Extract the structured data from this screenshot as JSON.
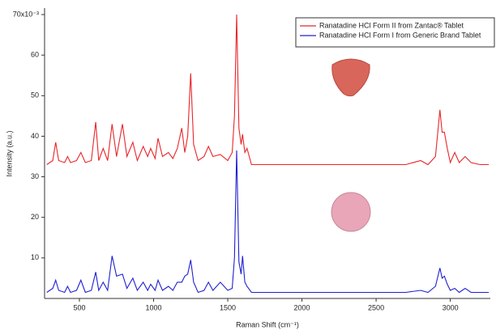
{
  "chart_data": {
    "type": "line",
    "xlabel": "Raman Shift (cm⁻¹)",
    "ylabel": "Intensity (a.u.)",
    "x": [
      280,
      320,
      340,
      360,
      400,
      420,
      440,
      480,
      510,
      540,
      580,
      610,
      630,
      660,
      690,
      720,
      750,
      790,
      820,
      860,
      890,
      930,
      960,
      980,
      1010,
      1030,
      1060,
      1100,
      1130,
      1160,
      1190,
      1210,
      1230,
      1250,
      1270,
      1300,
      1340,
      1370,
      1400,
      1450,
      1500,
      1530,
      1545,
      1560,
      1575,
      1590,
      1600,
      1615,
      1630,
      1660,
      1800,
      2000,
      2200,
      2500,
      2700,
      2800,
      2850,
      2900,
      2930,
      2945,
      2960,
      2980,
      3000,
      3030,
      3060,
      3100,
      3140,
      3200,
      3260
    ],
    "series": [
      {
        "name": "Ranatadine HCl Form II from Zantac® Tablet",
        "color": "#e8262a",
        "values": [
          33,
          34,
          38.5,
          34,
          33.5,
          35,
          33.5,
          34,
          36,
          33.5,
          34,
          43.5,
          34,
          37,
          34,
          43,
          35,
          43,
          35,
          38.5,
          34,
          37.5,
          35,
          37,
          34.5,
          39.5,
          35,
          36,
          34.5,
          37,
          42,
          36,
          40,
          55.5,
          38,
          34,
          35,
          37.5,
          35,
          35.5,
          34,
          36,
          45,
          70,
          42,
          38,
          40.5,
          36,
          37,
          33,
          33,
          33,
          33,
          33,
          33,
          34,
          33,
          35,
          46.5,
          41,
          41,
          37,
          33.5,
          36,
          33.5,
          35,
          33.5,
          33,
          33
        ]
      },
      {
        "name": "Ranatadine HCl Form I from Generic Brand Tablet",
        "color": "#2020d0",
        "values": [
          1.5,
          2.5,
          4.5,
          2,
          1.5,
          3,
          1.5,
          2,
          4.5,
          1.5,
          2,
          6.5,
          2,
          4,
          2,
          10.5,
          5.5,
          6,
          2.5,
          5,
          2,
          4,
          2,
          3.5,
          2,
          4.5,
          2,
          3,
          2,
          4,
          4,
          5.5,
          6,
          9.5,
          4,
          1.5,
          2,
          4,
          2,
          4,
          2,
          2.5,
          10,
          36.5,
          9,
          6,
          10.5,
          4,
          3,
          1.5,
          1.5,
          1.5,
          1.5,
          1.5,
          1.5,
          2,
          1.5,
          3,
          7.5,
          5,
          5.5,
          3.5,
          2,
          2.5,
          1.5,
          2.5,
          1.5,
          1.5,
          1.5
        ]
      }
    ],
    "xlim": [
      265,
      3270
    ],
    "xticks": [
      500,
      1000,
      1500,
      2000,
      2500,
      3000
    ],
    "ylim": [
      0,
      70
    ],
    "yticks": [
      10,
      20,
      30,
      40,
      50,
      60,
      {
        "value": 70,
        "label": "70x10⁻³"
      }
    ],
    "grid": false,
    "legend": "upper right"
  }
}
